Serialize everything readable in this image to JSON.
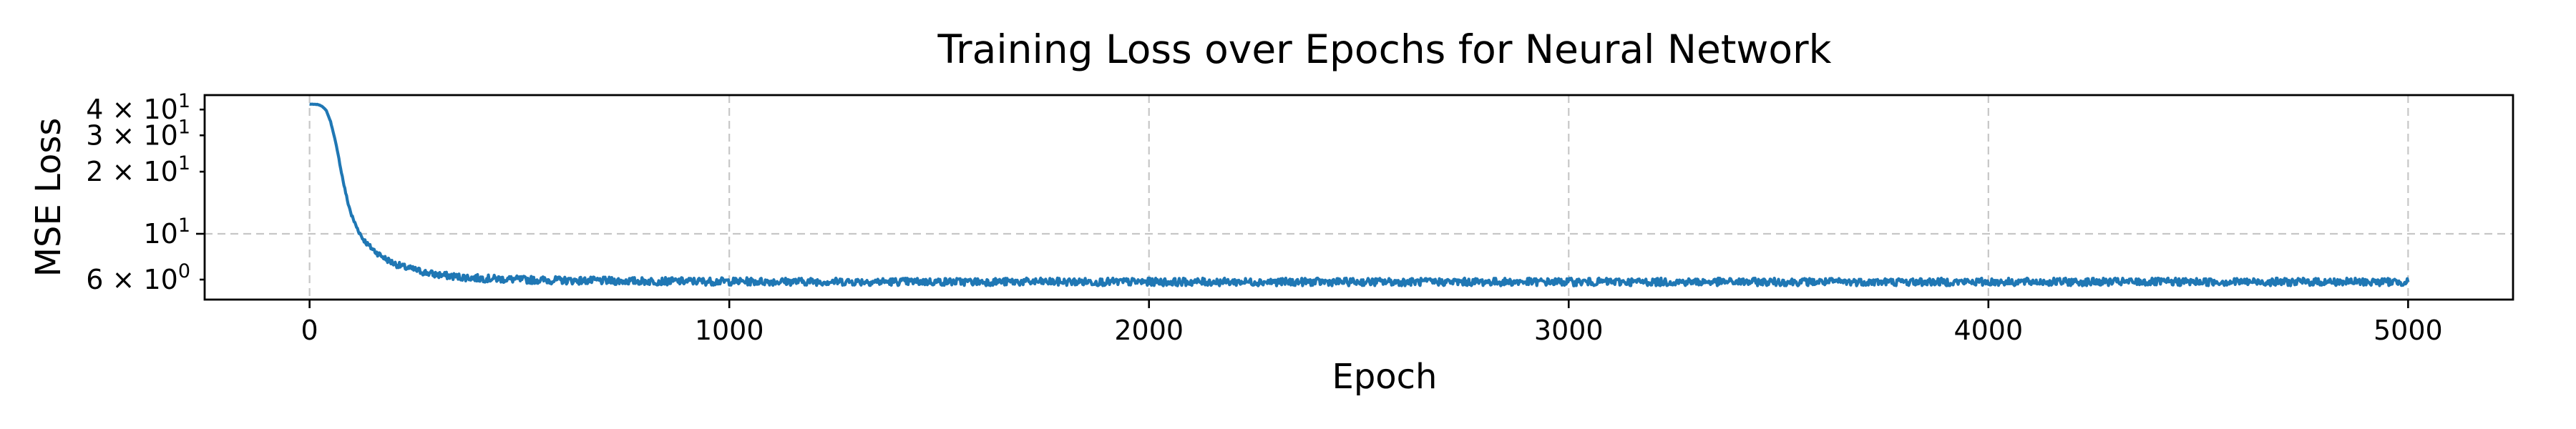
{
  "chart_data": {
    "type": "line",
    "title": "Training Loss over Epochs for Neural Network",
    "xlabel": "Epoch",
    "ylabel": "MSE Loss",
    "xscale": "linear",
    "yscale": "log",
    "xlim": [
      -250,
      5250
    ],
    "ylim": [
      4.8,
      47
    ],
    "grid": true,
    "legend": "none",
    "x_ticks": [
      {
        "value": 0,
        "label": "0"
      },
      {
        "value": 1000,
        "label": "1000"
      },
      {
        "value": 2000,
        "label": "2000"
      },
      {
        "value": 3000,
        "label": "3000"
      },
      {
        "value": 4000,
        "label": "4000"
      },
      {
        "value": 5000,
        "label": "5000"
      }
    ],
    "y_ticks": [
      {
        "value": 40,
        "mantissa": "4 × 10",
        "exponent": "1"
      },
      {
        "value": 30,
        "mantissa": "3 × 10",
        "exponent": "1"
      },
      {
        "value": 20,
        "mantissa": "2 × 10",
        "exponent": "1"
      },
      {
        "value": 10,
        "mantissa": "10",
        "exponent": "1"
      },
      {
        "value": 6,
        "mantissa": "6 × 10",
        "exponent": "0"
      }
    ],
    "y_major_grid": [
      10
    ],
    "series": [
      {
        "color": "#1f77b4",
        "noise": 0.25,
        "x": [
          0,
          20,
          30,
          40,
          50,
          60,
          70,
          80,
          90,
          100,
          110,
          125,
          140,
          160,
          180,
          200,
          225,
          250,
          275,
          300,
          350,
          400,
          450,
          500,
          600,
          700,
          800,
          1000,
          1200,
          1500,
          2000,
          2500,
          3000,
          3500,
          4000,
          4500,
          5000
        ],
        "y": [
          42.5,
          42.3,
          41.5,
          39.5,
          35.0,
          29.0,
          23.0,
          18.0,
          14.5,
          12.3,
          11.0,
          9.6,
          8.8,
          8.1,
          7.6,
          7.2,
          6.9,
          6.7,
          6.5,
          6.35,
          6.2,
          6.1,
          6.05,
          6.0,
          5.95,
          5.92,
          5.9,
          5.88,
          5.87,
          5.86,
          5.85,
          5.85,
          5.85,
          5.85,
          5.85,
          5.85,
          5.85
        ]
      }
    ]
  }
}
